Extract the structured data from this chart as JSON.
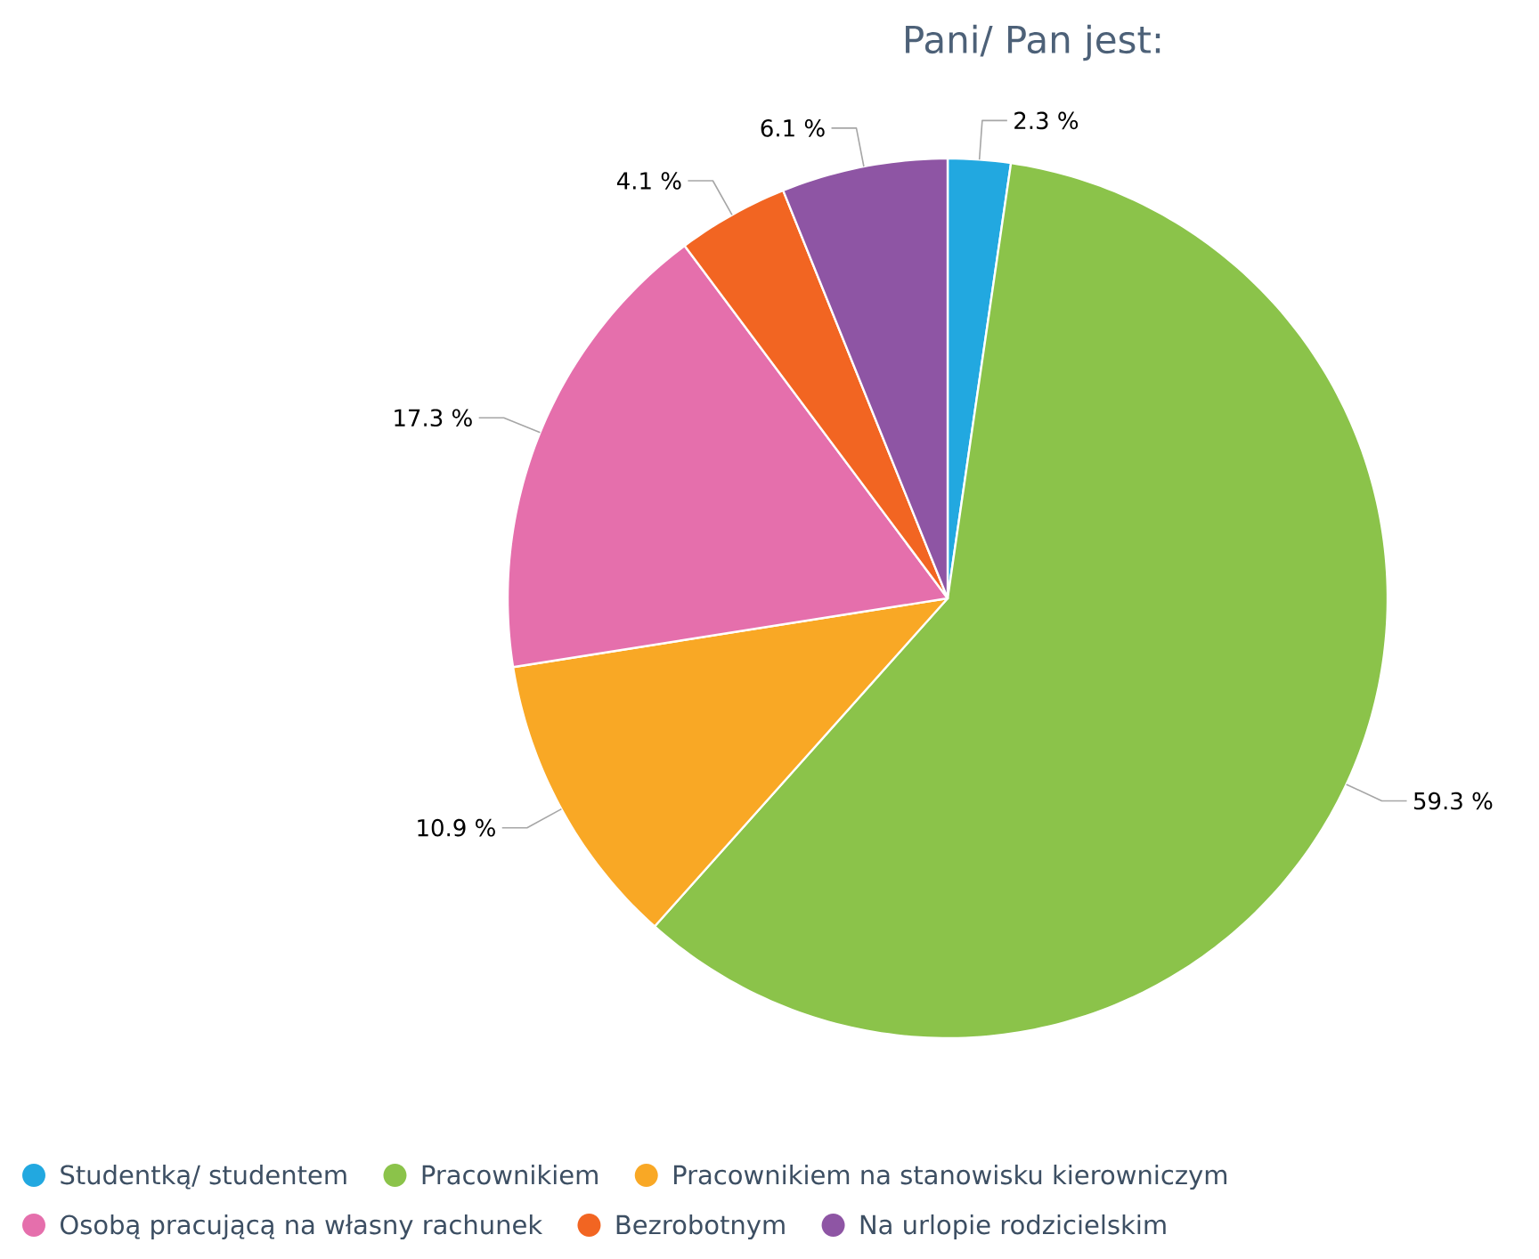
{
  "chart_data": {
    "type": "pie",
    "title": "Pani/ Pan jest:",
    "categories": [
      "Studentką/ studentem",
      "Pracownikiem",
      "Pracownikiem na stanowisku kierowniczym",
      "Osobą pracującą na własny rachunek",
      "Bezrobotnym",
      "Na urlopie rodzicielskim"
    ],
    "values": [
      2.3,
      59.3,
      10.9,
      17.3,
      4.1,
      6.1
    ],
    "colors": [
      "#22a8e0",
      "#8bc34a",
      "#f9a825",
      "#e56fac",
      "#f26522",
      "#8e55a4"
    ],
    "value_labels": [
      "2.3 %",
      "59.3 %",
      "10.9 %",
      "17.3 %",
      "4.1 %",
      "6.1 %"
    ],
    "legend": "bottom"
  }
}
